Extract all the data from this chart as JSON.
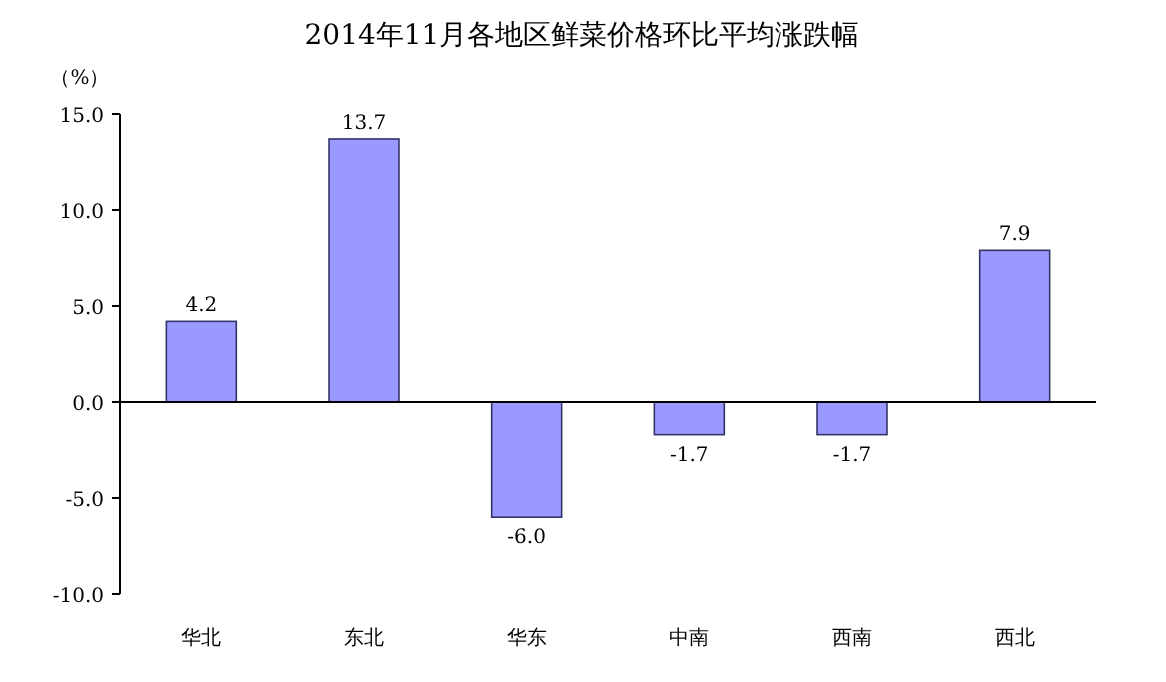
{
  "chart_data": {
    "type": "bar",
    "title": "2014年11月各地区鲜菜价格环比平均涨跌幅",
    "ylabel": "（%）",
    "categories": [
      "华北",
      "东北",
      "华东",
      "中南",
      "西南",
      "西北"
    ],
    "values": [
      4.2,
      13.7,
      -6.0,
      -1.7,
      -1.7,
      7.9
    ],
    "value_labels": [
      "4.2",
      "13.7",
      "-6.0",
      "-1.7",
      "-1.7",
      "7.9"
    ],
    "color": "#9999ff",
    "ylim": [
      -10,
      15
    ],
    "yticks": [
      {
        "value": 15,
        "label": "15.0"
      },
      {
        "value": 10,
        "label": "10.0"
      },
      {
        "value": 5,
        "label": "5.0"
      },
      {
        "value": 0,
        "label": "0.0"
      },
      {
        "value": -5,
        "label": "-5.0"
      },
      {
        "value": -10,
        "label": "-10.0"
      }
    ],
    "orientation": "vertical"
  }
}
